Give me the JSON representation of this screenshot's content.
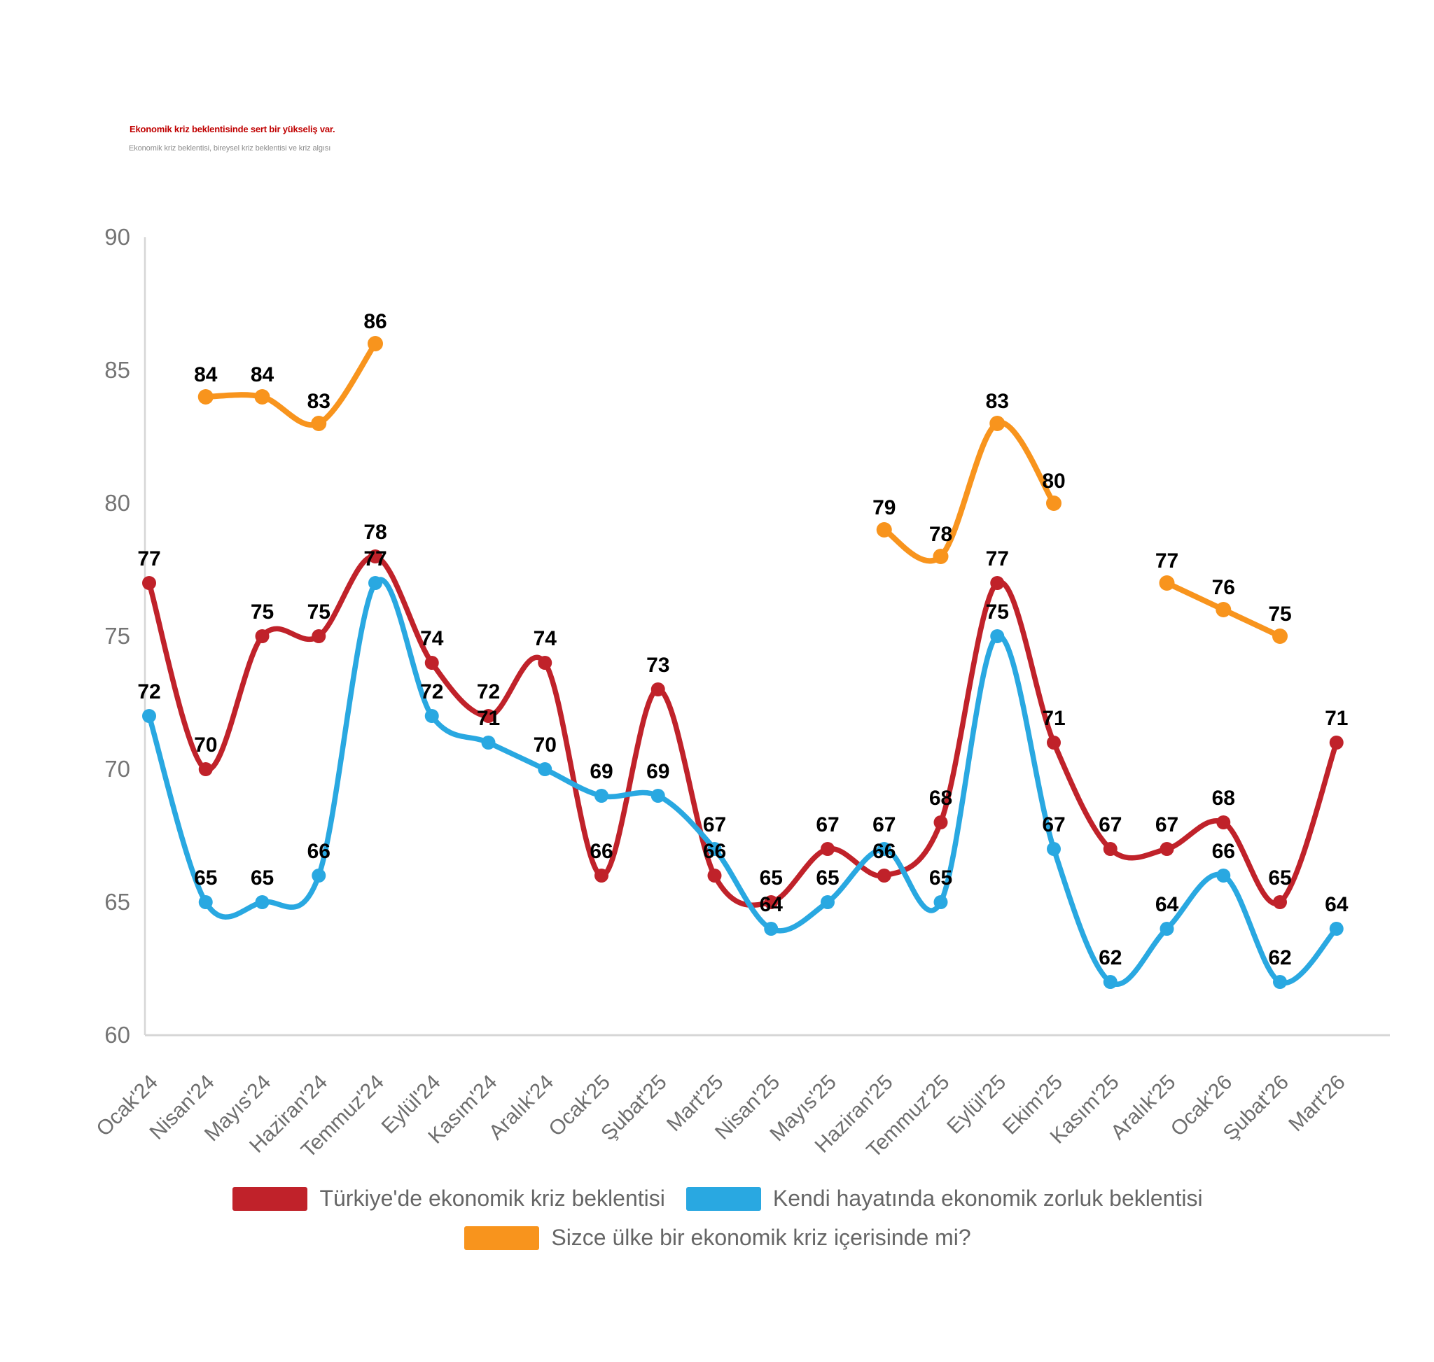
{
  "header": {
    "title": "Ekonomik kriz beklentisinde sert bir yükseliş var.",
    "subtitle": "Ekonomik kriz beklentisi, bireysel kriz beklentisi ve kriz algısı"
  },
  "colors": {
    "title": "#c00000",
    "subtitle_text": "#8c8c8c",
    "axis_line": "#d6d6d6",
    "axis_text": "#6e6e6e",
    "data_label_text": "#000000",
    "legend_text": "#666666",
    "series_red": "#c0222a",
    "series_blue": "#29a8e1",
    "series_orange": "#f8941d"
  },
  "chart_data": {
    "type": "line",
    "smooth": true,
    "grid": false,
    "data_labels": true,
    "legend_position": "bottom",
    "ylim": [
      60,
      90
    ],
    "yticks": [
      90,
      85,
      80,
      75,
      70,
      65,
      60
    ],
    "categories": [
      "Ocak'24",
      "Nisan'24",
      "Mayıs'24",
      "Haziran'24",
      "Temmuz'24",
      "Eylül'24",
      "Kasım'24",
      "Aralık'24",
      "Ocak'25",
      "Şubat'25",
      "Mart'25",
      "Nisan'25",
      "Mayıs'25",
      "Haziran'25",
      "Temmuz'25",
      "Eylül'25",
      "Ekim'25",
      "Kasım'25",
      "Aralık'25",
      "Ocak'26",
      "Şubat'26",
      "Mart'26"
    ],
    "series": [
      {
        "name": "Türkiye'de ekonomik kriz beklentisi",
        "color": "#c0222a",
        "values": [
          77,
          70,
          75,
          75,
          78,
          74,
          72,
          74,
          66,
          73,
          66,
          65,
          67,
          66,
          68,
          77,
          71,
          67,
          67,
          68,
          65,
          71
        ]
      },
      {
        "name": "Kendi hayatında ekonomik zorluk beklentisi",
        "color": "#29a8e1",
        "values": [
          72,
          65,
          65,
          66,
          77,
          72,
          71,
          70,
          69,
          69,
          67,
          64,
          65,
          67,
          65,
          75,
          67,
          62,
          64,
          66,
          62,
          64
        ]
      },
      {
        "name": "Sizce ülke bir ekonomik kriz içerisinde mi?",
        "color": "#f8941d",
        "values": [
          null,
          84,
          84,
          83,
          86,
          null,
          null,
          null,
          null,
          null,
          null,
          null,
          null,
          79,
          78,
          83,
          80,
          null,
          77,
          76,
          75,
          null
        ]
      }
    ]
  }
}
